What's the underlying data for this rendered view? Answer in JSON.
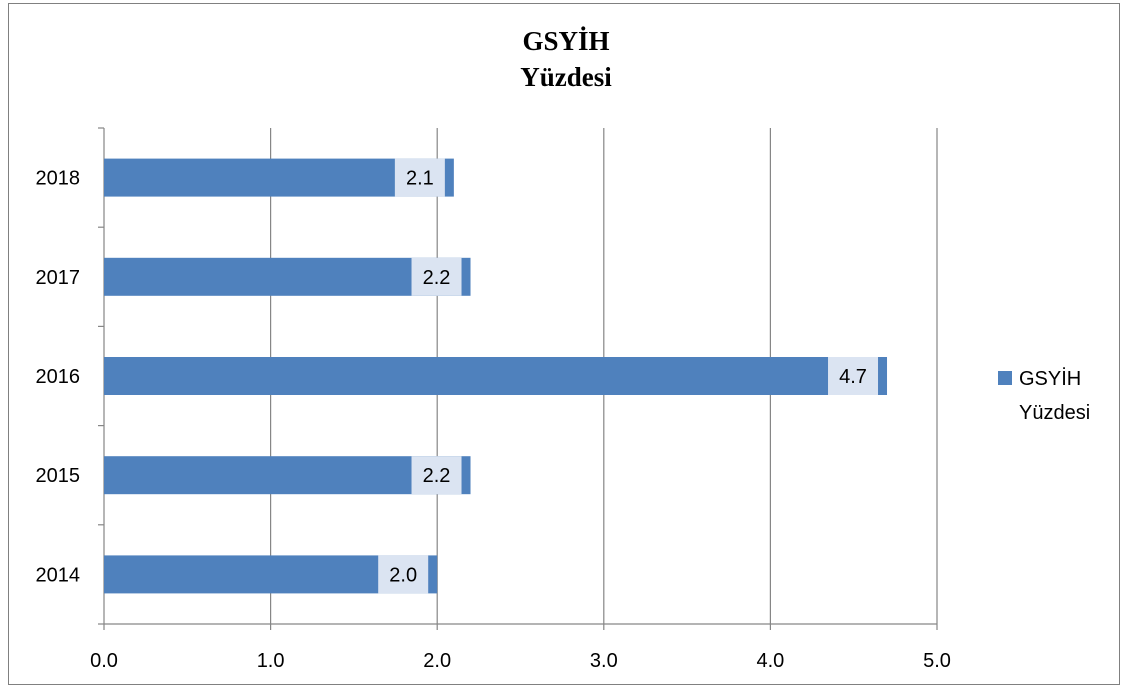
{
  "chart_data": {
    "type": "bar",
    "orientation": "horizontal",
    "title_lines": [
      "GSYİH",
      "Yüzdesi"
    ],
    "categories": [
      "2014",
      "2015",
      "2016",
      "2017",
      "2018"
    ],
    "series": [
      {
        "name": "GSYİH Yüzdesi",
        "values": [
          2.0,
          2.2,
          4.7,
          2.2,
          2.1
        ]
      }
    ],
    "data_labels": [
      "2.0",
      "2.2",
      "4.7",
      "2.2",
      "2.1"
    ],
    "x_ticks": [
      "0.0",
      "1.0",
      "2.0",
      "3.0",
      "4.0",
      "5.0"
    ],
    "xlim": [
      0,
      5
    ],
    "grid": "vertical",
    "legend_position": "right",
    "legend_lines": [
      "GSYİH",
      "Yüzdesi"
    ],
    "colors": {
      "bar": "#4f81bd",
      "grid": "#868686",
      "label_bg": "#dbe4f2"
    }
  }
}
